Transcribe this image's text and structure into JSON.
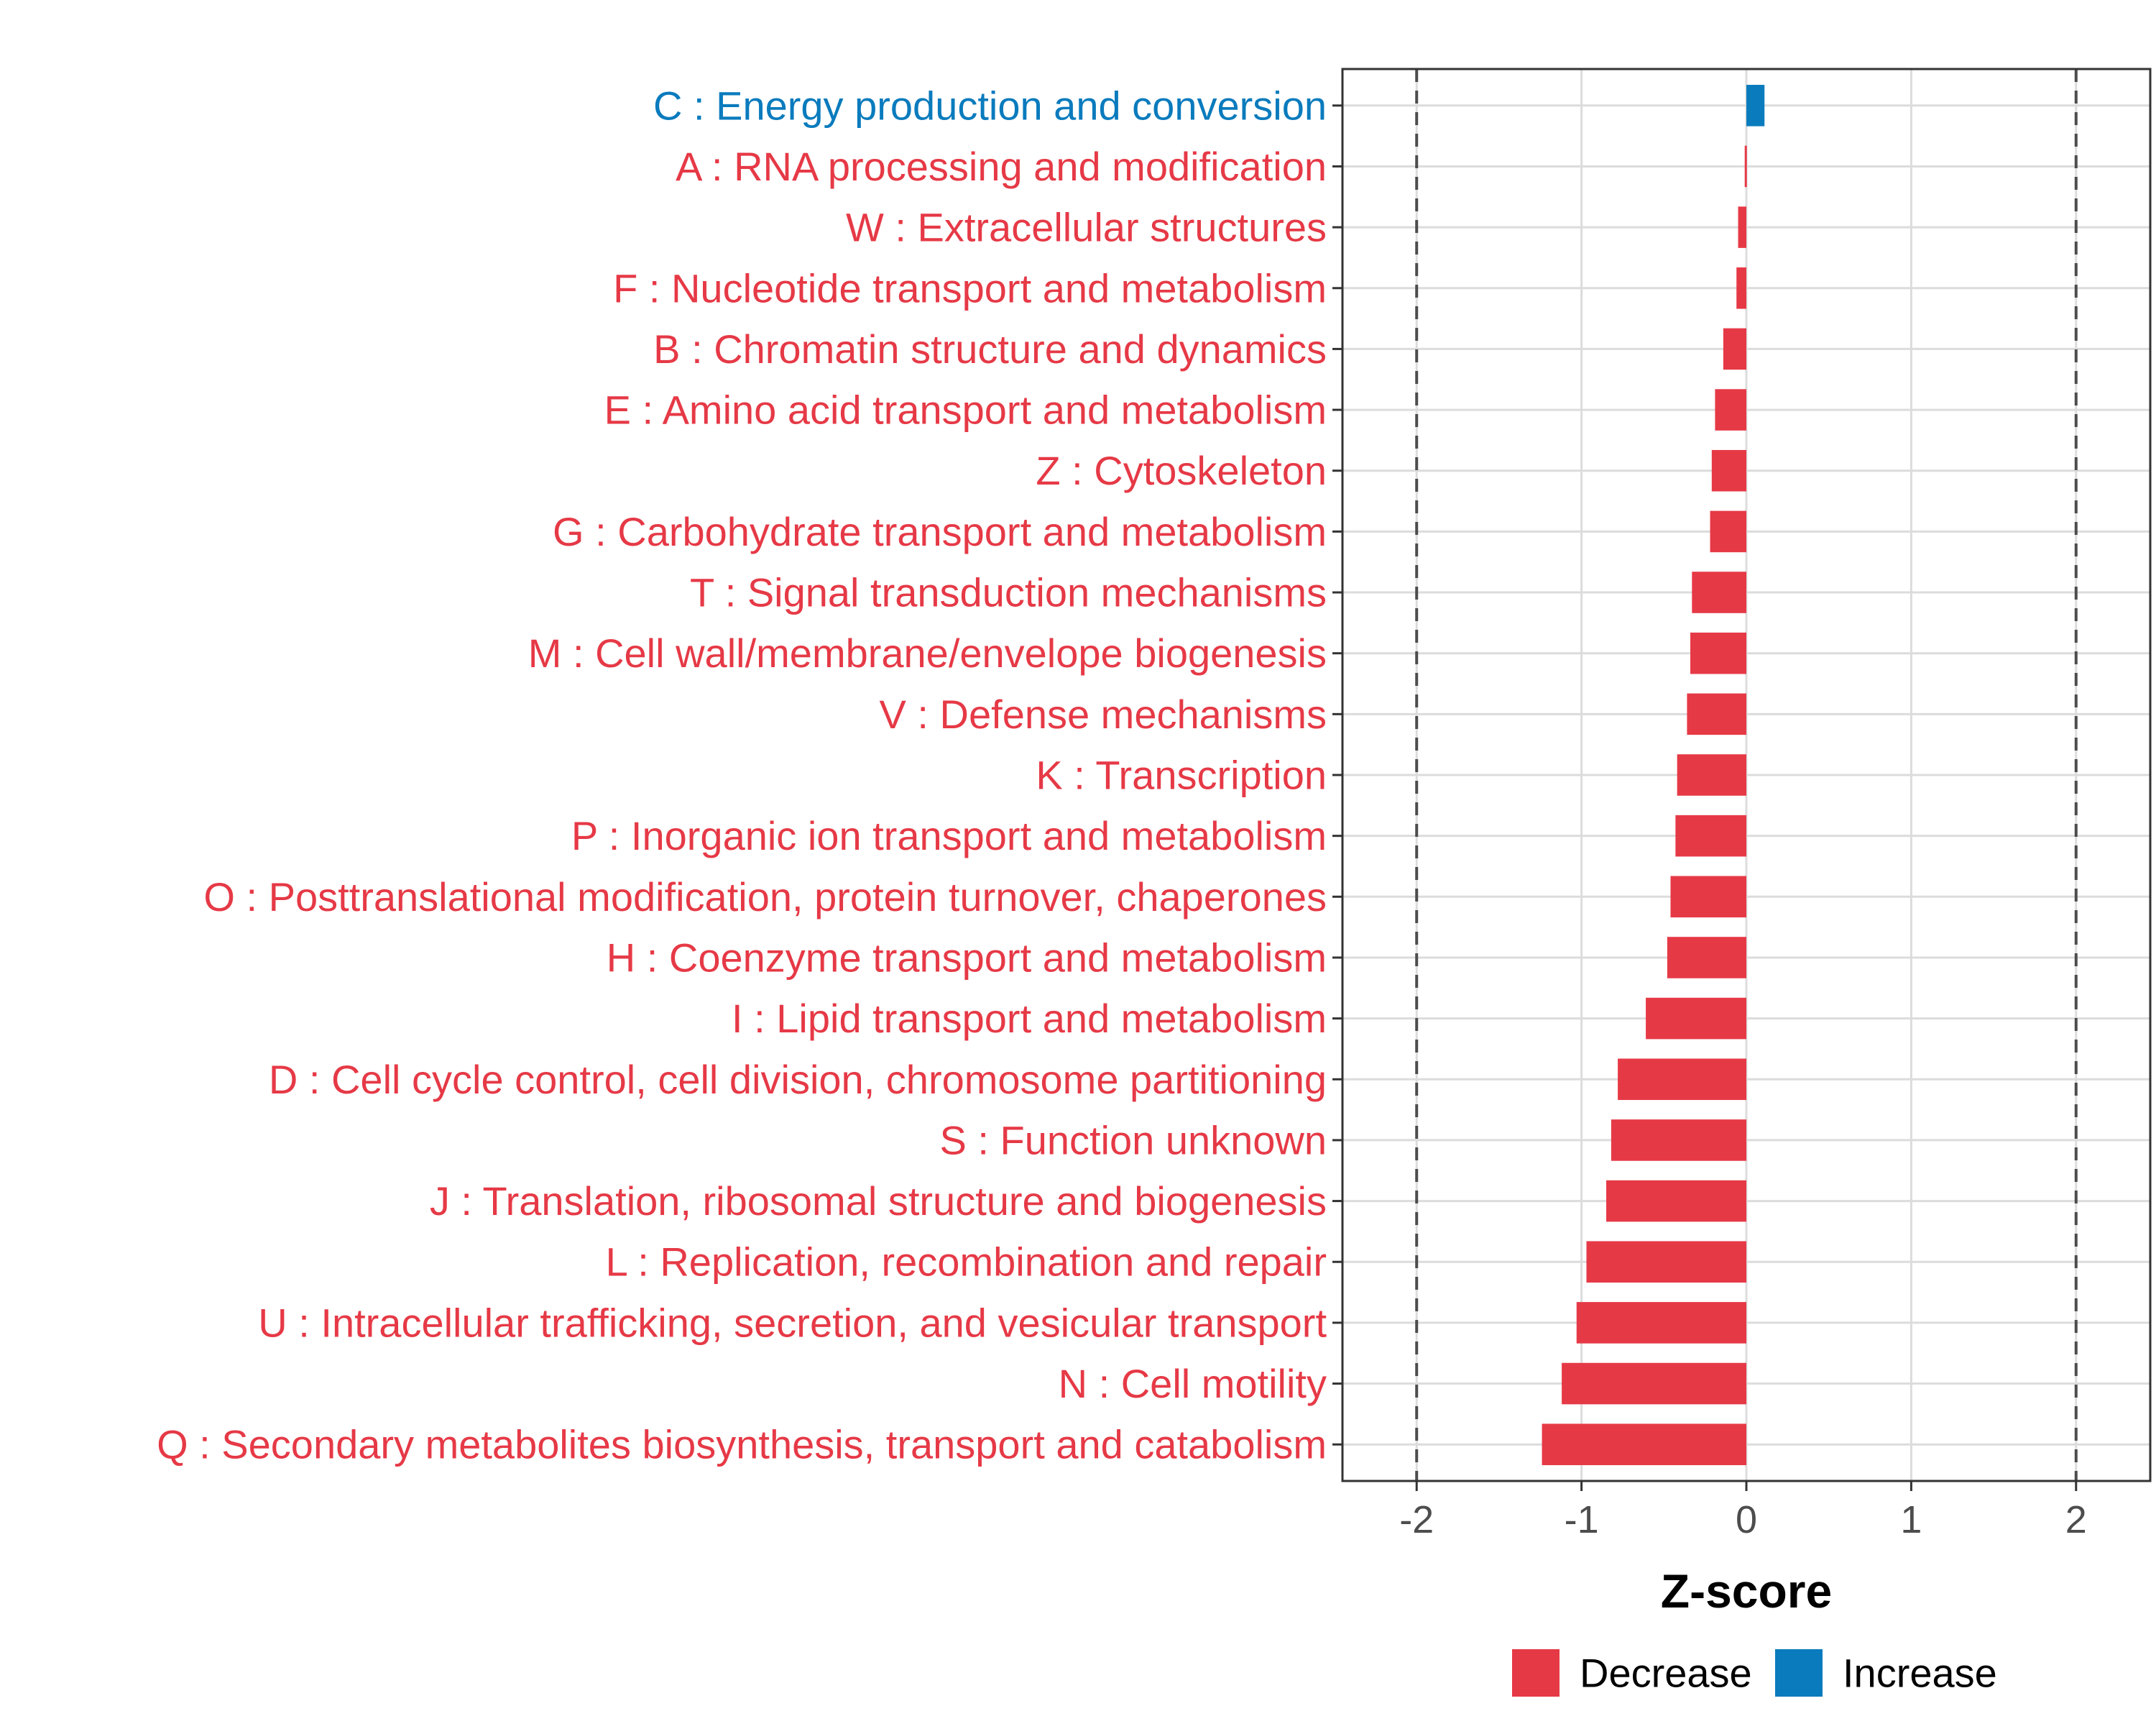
{
  "chart_data": {
    "type": "bar",
    "orientation": "horizontal",
    "xlabel": "Z-score",
    "ylabel": "",
    "xlim": [
      -2.45,
      2.45
    ],
    "xticks": [
      -2,
      -1,
      0,
      1,
      2
    ],
    "xtick_labels": [
      "-2",
      "-1",
      "0",
      "1",
      "2"
    ],
    "reference_lines": [
      -2,
      2
    ],
    "grid": true,
    "colors": {
      "Decrease": "#e63946",
      "Increase": "#0a7bbd"
    },
    "legend": {
      "placement": "bottom",
      "entries": [
        {
          "label": "Decrease",
          "color": "#e63946"
        },
        {
          "label": "Increase",
          "color": "#0a7bbd"
        }
      ]
    },
    "categories": [
      "C : Energy production and conversion",
      "A : RNA processing and modification",
      "W : Extracellular structures",
      "F : Nucleotide transport and metabolism",
      "B : Chromatin structure and dynamics",
      "E : Amino acid transport and metabolism",
      "Z : Cytoskeleton",
      "G : Carbohydrate transport and metabolism",
      "T : Signal transduction mechanisms",
      "M : Cell wall/membrane/envelope biogenesis",
      "V : Defense mechanisms",
      "K : Transcription",
      "P : Inorganic ion transport and metabolism",
      "O : Posttranslational modification, protein turnover, chaperones",
      "H : Coenzyme transport and metabolism",
      "I : Lipid transport and metabolism",
      "D : Cell cycle control, cell division, chromosome partitioning",
      "S : Function unknown",
      "J : Translation, ribosomal structure and biogenesis",
      "L : Replication, recombination and repair",
      "U : Intracellular trafficking, secretion, and vesicular transport",
      "N : Cell motility",
      "Q : Secondary metabolites biosynthesis, transport and catabolism"
    ],
    "values": [
      0.11,
      -0.01,
      -0.05,
      -0.06,
      -0.14,
      -0.19,
      -0.21,
      -0.22,
      -0.33,
      -0.34,
      -0.36,
      -0.42,
      -0.43,
      -0.46,
      -0.48,
      -0.61,
      -0.78,
      -0.82,
      -0.85,
      -0.97,
      -1.03,
      -1.12,
      -1.24
    ],
    "groups": [
      "Increase",
      "Decrease",
      "Decrease",
      "Decrease",
      "Decrease",
      "Decrease",
      "Decrease",
      "Decrease",
      "Decrease",
      "Decrease",
      "Decrease",
      "Decrease",
      "Decrease",
      "Decrease",
      "Decrease",
      "Decrease",
      "Decrease",
      "Decrease",
      "Decrease",
      "Decrease",
      "Decrease",
      "Decrease",
      "Decrease"
    ]
  }
}
